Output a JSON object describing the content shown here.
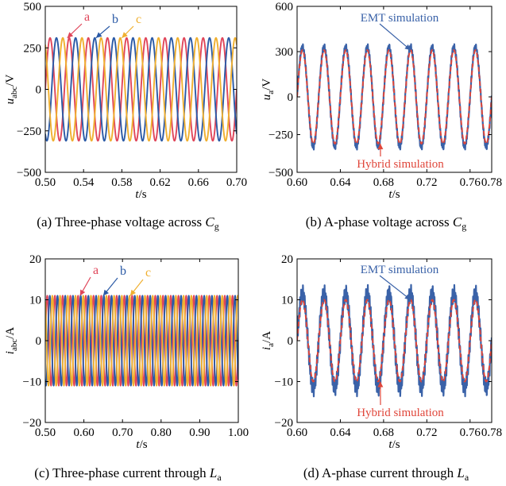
{
  "colors": {
    "phase_a": "#e0465a",
    "phase_b": "#2b5aa6",
    "phase_c": "#f0b030",
    "emt": "#3a62a8",
    "hybrid": "#e0463a",
    "axis": "#000000"
  },
  "chart_data": [
    {
      "type": "line",
      "caption_pre": "(a) Three-phase voltage across ",
      "caption_var": "C",
      "caption_sub": "g",
      "ylabel_var": "u",
      "ylabel_sub": "abc",
      "ylabel_unit": "/V",
      "xlabel_var": "t",
      "xlabel_unit": "/s",
      "xlim": [
        0.5,
        0.7
      ],
      "ylim": [
        -500,
        500
      ],
      "xticks": [
        "0.50",
        "0.54",
        "0.58",
        "0.62",
        "0.66",
        "0.70"
      ],
      "xtick_values": [
        0.5,
        0.54,
        0.58,
        0.62,
        0.66,
        0.7
      ],
      "yticks": [
        "500",
        "250",
        "0",
        "−250",
        "−500"
      ],
      "ytick_values": [
        500,
        250,
        0,
        -250,
        -500
      ],
      "series": [
        {
          "name": "a",
          "kind": "sine",
          "amplitude": 310,
          "frequency_hz": 50,
          "phase_deg": 0,
          "color_key": "phase_a"
        },
        {
          "name": "b",
          "kind": "sine",
          "amplitude": 310,
          "frequency_hz": 50,
          "phase_deg": -120,
          "color_key": "phase_b"
        },
        {
          "name": "c",
          "kind": "sine",
          "amplitude": 310,
          "frequency_hz": 50,
          "phase_deg": 120,
          "color_key": "phase_c"
        }
      ],
      "annotations": [
        {
          "text": "a",
          "color_key": "phase_a",
          "target": [
            0.523,
            310
          ]
        },
        {
          "text": "b",
          "color_key": "phase_b",
          "target": [
            0.553,
            310
          ]
        },
        {
          "text": "c",
          "color_key": "phase_c",
          "target": [
            0.58,
            310
          ]
        }
      ]
    },
    {
      "type": "line",
      "caption_pre": "(b) A-phase voltage across ",
      "caption_var": "C",
      "caption_sub": "g",
      "ylabel_var": "u",
      "ylabel_sub": "a",
      "ylabel_unit": "/V",
      "xlabel_var": "t",
      "xlabel_unit": "/s",
      "xlim": [
        0.6,
        0.78
      ],
      "ylim": [
        -500,
        600
      ],
      "xticks": [
        "0.60",
        "0.64",
        "0.68",
        "0.72",
        "0.76",
        "0.78"
      ],
      "xtick_values": [
        0.6,
        0.64,
        0.68,
        0.72,
        0.76,
        0.78
      ],
      "yticks": [
        "600",
        "300",
        "0",
        "−250",
        "−500"
      ],
      "ytick_values": [
        600,
        300,
        0,
        -250,
        -500
      ],
      "series": [
        {
          "name": "EMT simulation",
          "kind": "sine",
          "amplitude": 330,
          "frequency_hz": 50,
          "phase_deg": 0,
          "color_key": "emt",
          "ripple": 14
        },
        {
          "name": "Hybrid simulation",
          "kind": "sine",
          "amplitude": 310,
          "frequency_hz": 50,
          "phase_deg": 0,
          "color_key": "hybrid",
          "dashed": true
        }
      ],
      "annotations": [
        {
          "text": "EMT simulation",
          "color_key": "emt",
          "target": [
            0.705,
            310
          ]
        },
        {
          "text": "Hybrid simulation",
          "color_key": "hybrid",
          "target": [
            0.677,
            -310
          ]
        }
      ]
    },
    {
      "type": "line",
      "caption_pre": "(c) Three-phase current through ",
      "caption_var": "L",
      "caption_sub": "a",
      "ylabel_var": "i",
      "ylabel_sub": "abc",
      "ylabel_unit": "/A",
      "xlabel_var": "t",
      "xlabel_unit": "/s",
      "xlim": [
        0.5,
        1.0
      ],
      "ylim": [
        -20,
        20
      ],
      "xticks": [
        "0.50",
        "0.60",
        "0.70",
        "0.80",
        "0.90",
        "1.00"
      ],
      "xtick_values": [
        0.5,
        0.6,
        0.7,
        0.8,
        0.9,
        1.0
      ],
      "yticks": [
        "20",
        "10",
        "0",
        "−10",
        "−20"
      ],
      "ytick_values": [
        20,
        10,
        0,
        -10,
        -20
      ],
      "series": [
        {
          "name": "a",
          "kind": "sine",
          "amplitude": 11,
          "frequency_hz": 50,
          "phase_deg": 0,
          "color_key": "phase_a"
        },
        {
          "name": "b",
          "kind": "sine",
          "amplitude": 11,
          "frequency_hz": 50,
          "phase_deg": -120,
          "color_key": "phase_b"
        },
        {
          "name": "c",
          "kind": "sine",
          "amplitude": 11,
          "frequency_hz": 50,
          "phase_deg": 120,
          "color_key": "phase_c"
        }
      ],
      "annotations": [
        {
          "text": "a",
          "color_key": "phase_a",
          "target": [
            0.59,
            11
          ]
        },
        {
          "text": "b",
          "color_key": "phase_b",
          "target": [
            0.65,
            11
          ]
        },
        {
          "text": "c",
          "color_key": "phase_c",
          "target": [
            0.72,
            11
          ]
        }
      ]
    },
    {
      "type": "line",
      "caption_pre": "(d) A-phase current through ",
      "caption_var": "L",
      "caption_sub": "a",
      "ylabel_var": "i",
      "ylabel_sub": "a",
      "ylabel_unit": "/A",
      "xlabel_var": "t",
      "xlabel_unit": "/s",
      "xlim": [
        0.6,
        0.78
      ],
      "ylim": [
        -20,
        20
      ],
      "xticks": [
        "0.60",
        "0.64",
        "0.68",
        "0.72",
        "0.76",
        "0.78"
      ],
      "xtick_values": [
        0.6,
        0.64,
        0.68,
        0.72,
        0.76,
        0.78
      ],
      "yticks": [
        "20",
        "10",
        "0",
        "−10",
        "−20"
      ],
      "ytick_values": [
        20,
        10,
        0,
        -10,
        -20
      ],
      "series": [
        {
          "name": "EMT simulation",
          "kind": "sine",
          "amplitude": 11.5,
          "frequency_hz": 50,
          "phase_deg": 0,
          "color_key": "emt",
          "ripple": 1.4
        },
        {
          "name": "Hybrid simulation",
          "kind": "sine",
          "amplitude": 10,
          "frequency_hz": 50,
          "phase_deg": 0,
          "color_key": "hybrid",
          "dashed": true
        }
      ],
      "annotations": [
        {
          "text": "EMT simulation",
          "color_key": "emt",
          "target": [
            0.705,
            10
          ]
        },
        {
          "text": "Hybrid simulation",
          "color_key": "hybrid",
          "target": [
            0.677,
            -10
          ]
        }
      ]
    }
  ]
}
